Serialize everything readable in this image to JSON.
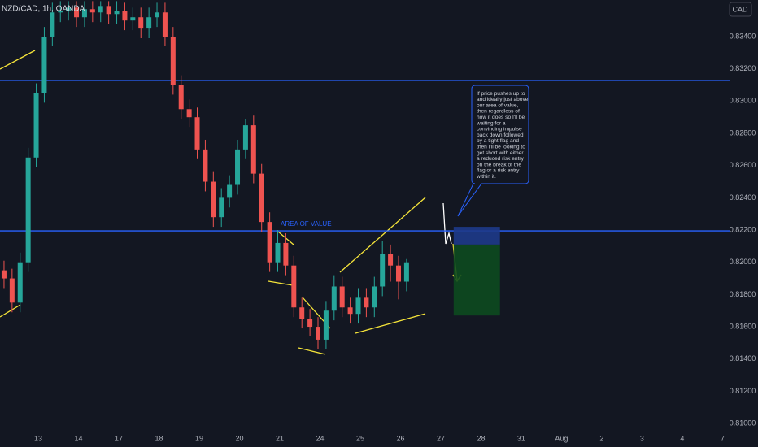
{
  "chart_data": {
    "type": "candlestick",
    "title": "NZD/CAD, 1h, OANDA",
    "currency": "CAD",
    "up_color": "#26a69a",
    "down_color": "#ef5350",
    "grid": false,
    "x": [
      -0.85,
      -0.65,
      -0.45,
      -0.25,
      -0.05,
      0.15,
      0.35,
      0.55,
      0.75,
      0.95,
      1.15,
      1.35,
      1.55,
      1.75,
      1.95,
      2.15,
      2.35,
      2.55,
      2.75,
      2.95,
      3.15,
      3.35,
      3.55,
      3.75,
      3.95,
      4.15,
      4.35,
      4.55,
      4.75,
      4.95,
      5.15,
      5.35,
      5.55,
      5.75,
      5.95,
      6.15,
      6.35,
      6.55,
      6.75,
      6.95,
      7.15,
      7.35,
      7.55,
      7.75,
      7.95,
      8.15,
      8.35,
      8.55,
      8.75,
      8.95,
      9.15
    ],
    "open": [
      0.8195,
      0.819,
      0.8175,
      0.82,
      0.8265,
      0.8305,
      0.834,
      0.8355,
      0.8356,
      0.8358,
      0.8352,
      0.8357,
      0.8355,
      0.8359,
      0.8354,
      0.8356,
      0.835,
      0.8352,
      0.8345,
      0.8352,
      0.8355,
      0.834,
      0.831,
      0.8295,
      0.829,
      0.827,
      0.825,
      0.8228,
      0.824,
      0.8248,
      0.827,
      0.8285,
      0.8255,
      0.8225,
      0.82,
      0.8212,
      0.8198,
      0.8172,
      0.8165,
      0.816,
      0.8152,
      0.817,
      0.8185,
      0.8172,
      0.8168,
      0.8178,
      0.8172,
      0.8185,
      0.8205,
      0.8198,
      0.8188
    ],
    "high": [
      0.8201,
      0.8196,
      0.8206,
      0.8271,
      0.8311,
      0.8346,
      0.8361,
      0.8362,
      0.8362,
      0.8362,
      0.8362,
      0.8362,
      0.8362,
      0.8362,
      0.8362,
      0.8361,
      0.8358,
      0.8358,
      0.8358,
      0.8361,
      0.8361,
      0.8346,
      0.8316,
      0.8301,
      0.8296,
      0.8276,
      0.8256,
      0.8246,
      0.8254,
      0.8276,
      0.8289,
      0.8291,
      0.8261,
      0.8231,
      0.822,
      0.8218,
      0.8204,
      0.8178,
      0.8171,
      0.8166,
      0.8176,
      0.8192,
      0.8191,
      0.8178,
      0.8184,
      0.8184,
      0.8191,
      0.8213,
      0.8211,
      0.8204,
      0.8202
    ],
    "low": [
      0.8184,
      0.8169,
      0.8169,
      0.8194,
      0.8259,
      0.8299,
      0.8334,
      0.8349,
      0.835,
      0.8346,
      0.8346,
      0.8349,
      0.8349,
      0.8348,
      0.8348,
      0.8344,
      0.8344,
      0.8339,
      0.8339,
      0.8346,
      0.8334,
      0.8304,
      0.8289,
      0.8284,
      0.8264,
      0.8244,
      0.8222,
      0.8222,
      0.8234,
      0.8242,
      0.8264,
      0.8249,
      0.8219,
      0.8194,
      0.8194,
      0.8192,
      0.8166,
      0.8159,
      0.8154,
      0.8146,
      0.8146,
      0.8164,
      0.8166,
      0.8162,
      0.8162,
      0.8166,
      0.8166,
      0.8179,
      0.8188,
      0.8177,
      0.8182
    ],
    "close": [
      0.819,
      0.8175,
      0.82,
      0.8265,
      0.8305,
      0.834,
      0.8355,
      0.8356,
      0.8358,
      0.8352,
      0.8357,
      0.8355,
      0.8359,
      0.8354,
      0.8356,
      0.835,
      0.8352,
      0.8345,
      0.8352,
      0.8355,
      0.834,
      0.831,
      0.8295,
      0.829,
      0.827,
      0.825,
      0.8228,
      0.824,
      0.8248,
      0.827,
      0.8285,
      0.8255,
      0.8225,
      0.82,
      0.8212,
      0.8198,
      0.8172,
      0.8165,
      0.816,
      0.8152,
      0.817,
      0.8185,
      0.8172,
      0.8168,
      0.8178,
      0.8172,
      0.8185,
      0.8205,
      0.8198,
      0.8188,
      0.82
    ],
    "xlim": [
      -0.95,
      16.83
    ],
    "xticks": [
      {
        "value": 0,
        "label": "13"
      },
      {
        "value": 1,
        "label": "14"
      },
      {
        "value": 2,
        "label": "17"
      },
      {
        "value": 3,
        "label": "18"
      },
      {
        "value": 4,
        "label": "19"
      },
      {
        "value": 5,
        "label": "20"
      },
      {
        "value": 6,
        "label": "21"
      },
      {
        "value": 7,
        "label": "24"
      },
      {
        "value": 8,
        "label": "25"
      },
      {
        "value": 9,
        "label": "26"
      },
      {
        "value": 10,
        "label": "27"
      },
      {
        "value": 11,
        "label": "28"
      },
      {
        "value": 12,
        "label": "31"
      },
      {
        "value": 13,
        "label": "Aug"
      },
      {
        "value": 14,
        "label": "2"
      },
      {
        "value": 15,
        "label": "3"
      },
      {
        "value": 16,
        "label": "4"
      },
      {
        "value": 17,
        "label": "7"
      }
    ],
    "ylim": [
      0.80955,
      0.83627
    ],
    "yticks": [
      {
        "value": 0.834,
        "label": "0.83400"
      },
      {
        "value": 0.832,
        "label": "0.83200"
      },
      {
        "value": 0.83,
        "label": "0.83000"
      },
      {
        "value": 0.828,
        "label": "0.82800"
      },
      {
        "value": 0.826,
        "label": "0.82600"
      },
      {
        "value": 0.824,
        "label": "0.82400"
      },
      {
        "value": 0.822,
        "label": "0.82200"
      },
      {
        "value": 0.82,
        "label": "0.82000"
      },
      {
        "value": 0.818,
        "label": "0.81800"
      },
      {
        "value": 0.816,
        "label": "0.81600"
      },
      {
        "value": 0.814,
        "label": "0.81400"
      },
      {
        "value": 0.812,
        "label": "0.81200"
      },
      {
        "value": 0.81,
        "label": "0.81000"
      }
    ],
    "hlines": [
      {
        "value": 0.83128,
        "color": "#2962ff"
      },
      {
        "value": 0.82195,
        "color": "#2962ff",
        "label": "AREA OF VALUE"
      }
    ],
    "position": {
      "x_start": 10.32,
      "x_end": 11.47,
      "entry": 0.8211,
      "stop": 0.8222,
      "target": 0.8167,
      "stop_color": "#1e3a8a",
      "target_color": "#0d4a1f"
    },
    "callout": [
      "If price pushes up to",
      "and ideally just above",
      "our area of value,",
      "then regardless of",
      "how it does so I'll be",
      "waiting for a",
      "convincing impulse",
      "back down followed",
      "by a tight flag and",
      "then I'll be looking to",
      "get short with either",
      "a reduced risk entry",
      "on the break of the",
      "flag or a risk entry",
      "within it."
    ]
  }
}
